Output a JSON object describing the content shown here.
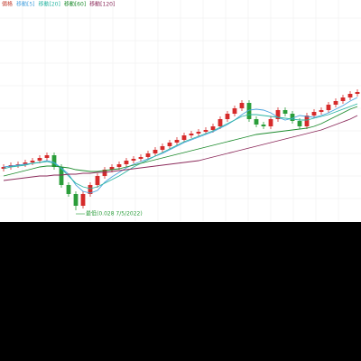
{
  "chart_data": {
    "type": "candlestick",
    "ylim": [
      0,
      245
    ],
    "grid": true,
    "candles": {
      "name": "價格",
      "up_color": "#d62b2b",
      "down_color": "#2a9d3a",
      "open": [
        58,
        60,
        62,
        63,
        65,
        67,
        70,
        73,
        60,
        40,
        30,
        17,
        30,
        40,
        50,
        57,
        60,
        63,
        67,
        69,
        71,
        75,
        79,
        83,
        87,
        90,
        95,
        97,
        99,
        101,
        105,
        113,
        119,
        125,
        131,
        113,
        107,
        105,
        113,
        123,
        119,
        111,
        105,
        117,
        121,
        123,
        129,
        133,
        137,
        141
      ],
      "high": [
        63,
        65,
        66,
        68,
        70,
        73,
        76,
        76,
        63,
        43,
        33,
        33,
        43,
        53,
        60,
        63,
        66,
        70,
        72,
        74,
        78,
        82,
        86,
        90,
        93,
        98,
        100,
        102,
        104,
        108,
        116,
        122,
        128,
        134,
        134,
        116,
        110,
        116,
        126,
        126,
        122,
        114,
        120,
        124,
        126,
        132,
        136,
        140,
        144,
        146
      ],
      "low": [
        55,
        57,
        59,
        60,
        62,
        64,
        67,
        57,
        37,
        27,
        12,
        14,
        27,
        37,
        47,
        54,
        57,
        60,
        64,
        66,
        68,
        72,
        76,
        80,
        84,
        87,
        92,
        94,
        96,
        98,
        102,
        110,
        116,
        122,
        110,
        104,
        102,
        102,
        110,
        116,
        108,
        102,
        102,
        114,
        118,
        120,
        126,
        130,
        134,
        138
      ],
      "close": [
        60,
        62,
        63,
        65,
        67,
        70,
        73,
        60,
        40,
        30,
        17,
        30,
        40,
        50,
        57,
        60,
        63,
        67,
        69,
        71,
        75,
        79,
        83,
        87,
        90,
        95,
        97,
        99,
        101,
        105,
        113,
        119,
        125,
        131,
        113,
        107,
        105,
        113,
        123,
        119,
        111,
        105,
        117,
        121,
        123,
        129,
        133,
        137,
        141,
        143
      ]
    },
    "series": [
      {
        "name": "移動[5]",
        "color": "#4aa3df",
        "values": [
          60,
          61,
          62,
          63,
          64,
          65,
          67,
          65,
          59,
          52,
          40,
          33,
          31,
          34,
          43,
          49,
          54,
          59,
          63,
          66,
          69,
          72,
          75,
          79,
          83,
          87,
          90,
          93,
          96,
          99,
          103,
          107,
          112,
          118,
          123,
          124,
          123,
          120,
          115,
          112,
          114,
          117,
          116,
          115,
          117,
          120,
          124,
          128,
          133,
          137
        ]
      },
      {
        "name": "移動[20]",
        "color": "#2bb6a3",
        "values": [
          58,
          60,
          61,
          62,
          64,
          65,
          66,
          64,
          58,
          50,
          42,
          38,
          36,
          38,
          42,
          46,
          50,
          55,
          60,
          64,
          68,
          72,
          76,
          80,
          84,
          88,
          91,
          94,
          97,
          100,
          104,
          108,
          112,
          116,
          118,
          118,
          117,
          116,
          115,
          114,
          113,
          112,
          112,
          114,
          116,
          118,
          121,
          124,
          127,
          130
        ]
      },
      {
        "name": "移動[60]",
        "color": "#1e8c2e",
        "values": [
          50,
          52,
          54,
          56,
          58,
          60,
          61,
          61,
          60,
          59,
          57,
          56,
          55,
          55,
          56,
          57,
          58,
          60,
          62,
          64,
          66,
          68,
          70,
          72,
          74,
          76,
          78,
          80,
          82,
          84,
          86,
          88,
          90,
          92,
          94,
          96,
          97,
          98,
          99,
          100,
          101,
          102,
          103,
          105,
          108,
          112,
          116,
          120,
          124,
          127
        ]
      },
      {
        "name": "移動[120]",
        "color": "#8b2a5a",
        "values": [
          45,
          46,
          47,
          48,
          49,
          50,
          50,
          51,
          51,
          52,
          52,
          53,
          53,
          54,
          54,
          55,
          56,
          57,
          58,
          59,
          60,
          61,
          62,
          63,
          64,
          65,
          66,
          67,
          69,
          71,
          73,
          75,
          77,
          79,
          81,
          83,
          85,
          87,
          89,
          91,
          93,
          95,
          97,
          99,
          101,
          104,
          107,
          110,
          113,
          117
        ]
      }
    ],
    "annotation": "最低(0.028 7/5/2022)"
  }
}
